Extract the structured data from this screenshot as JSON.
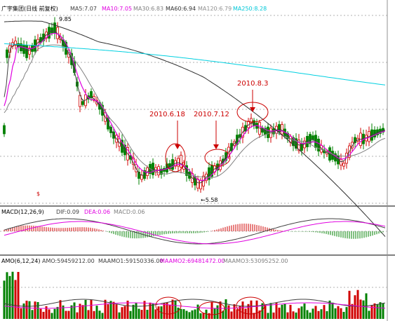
{
  "main_header": {
    "stock": "广宇集团(日线 前复权)",
    "ma5": "MA5:7.07",
    "ma10": "MA10:7.05",
    "ma30": "MA30:6.83",
    "ma60": "MA60:6.94",
    "ma120": "MA120:6.79",
    "ma250": "MA250:8.28"
  },
  "price_marks": {
    "high": "9.85",
    "low": "←5.58"
  },
  "annotations": [
    "2010.6.18",
    "2010.7.12",
    "2010.8.3"
  ],
  "macd_header": {
    "name": "MACD(12,26,9)",
    "dif": "DIF:0.09",
    "dea": "DEA:0.06",
    "macd": "MACD:0.06"
  },
  "amo_header": {
    "name": "AMO(6,12,24)",
    "amo": "AMO:59459212.00",
    "maamo1": "MAAMO1:59150336.00",
    "maamo2": "MAAMO2:69481472.00",
    "maamo3": "MAAMO3:53095252.00"
  },
  "colors": {
    "up": "#d00000",
    "down": "#008000",
    "ma5": "#404040",
    "ma10": "#e000e0",
    "ma30": "#808080",
    "ma60": "#303030",
    "ma250": "#00d0e0",
    "grid": "#b0b0b0",
    "annotation": "#cc0000"
  }
}
